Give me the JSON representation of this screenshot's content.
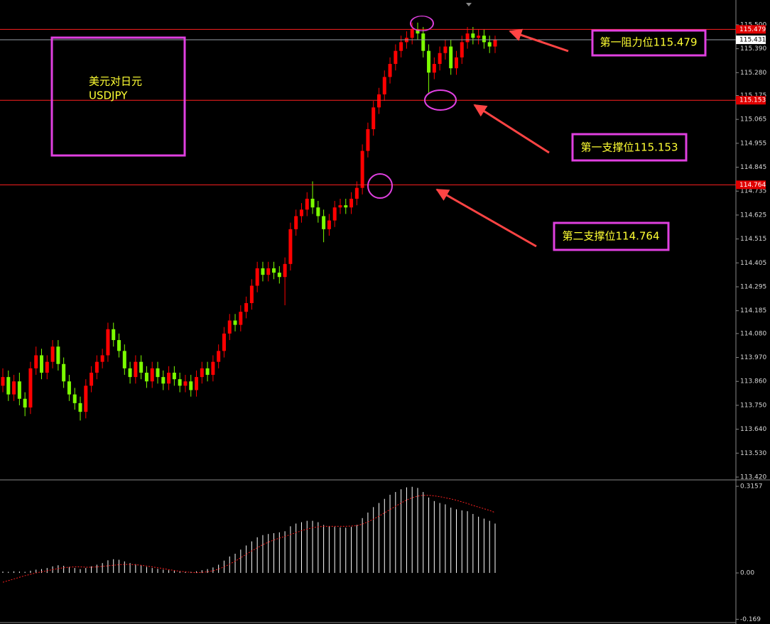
{
  "chart_data": [
    {
      "type": "candlestick",
      "title": "美元对日元",
      "subtitle": "USDJPY",
      "up_color": "#ff0000",
      "down_color": "#7cfc00",
      "open": [
        113.84,
        113.88,
        113.8,
        113.86,
        113.78,
        113.74,
        113.92,
        113.98,
        113.9,
        113.95,
        114.02,
        113.94,
        113.86,
        113.8,
        113.76,
        113.72,
        113.84,
        113.9,
        113.95,
        113.98,
        114.1,
        114.05,
        114.0,
        113.92,
        113.88,
        113.95,
        113.9,
        113.86,
        113.92,
        113.88,
        113.85,
        113.9,
        113.87,
        113.84,
        113.86,
        113.82,
        113.88,
        113.92,
        113.89,
        113.95,
        114.0,
        114.08,
        114.14,
        114.12,
        114.18,
        114.22,
        114.3,
        114.38,
        114.35,
        114.38,
        114.36,
        114.34,
        114.4,
        114.56,
        114.62,
        114.65,
        114.7,
        114.66,
        114.62,
        114.56,
        114.6,
        114.66,
        114.67,
        114.66,
        114.7,
        114.75,
        114.92,
        115.02,
        115.12,
        115.18,
        115.26,
        115.32,
        115.38,
        115.42,
        115.44,
        115.48,
        115.46,
        115.38,
        115.28,
        115.32,
        115.37,
        115.4,
        115.3,
        115.35,
        115.42,
        115.46,
        115.44,
        115.45,
        115.42,
        115.4
      ],
      "high": [
        113.92,
        113.91,
        113.89,
        113.9,
        113.81,
        113.95,
        114.02,
        114.01,
        113.98,
        114.05,
        114.05,
        113.97,
        113.89,
        113.83,
        113.79,
        113.87,
        113.93,
        113.98,
        114.01,
        114.13,
        114.13,
        114.08,
        114.03,
        113.95,
        113.98,
        113.98,
        113.93,
        113.95,
        113.95,
        113.91,
        113.93,
        113.93,
        113.9,
        113.89,
        113.89,
        113.91,
        113.95,
        113.95,
        113.98,
        114.03,
        114.11,
        114.17,
        114.17,
        114.21,
        114.25,
        114.33,
        114.41,
        114.41,
        114.41,
        114.41,
        114.39,
        114.43,
        114.59,
        114.65,
        114.68,
        114.73,
        114.78,
        114.69,
        114.65,
        114.63,
        114.69,
        114.7,
        114.7,
        114.73,
        114.78,
        114.95,
        115.05,
        115.15,
        115.21,
        115.29,
        115.35,
        115.41,
        115.45,
        115.47,
        115.51,
        115.51,
        115.49,
        115.41,
        115.35,
        115.4,
        115.43,
        115.43,
        115.38,
        115.45,
        115.49,
        115.49,
        115.48,
        115.48,
        115.45,
        115.45
      ],
      "low": [
        113.81,
        113.77,
        113.77,
        113.75,
        113.7,
        113.71,
        113.89,
        113.87,
        113.87,
        113.92,
        113.91,
        113.83,
        113.77,
        113.73,
        113.68,
        113.69,
        113.81,
        113.87,
        113.92,
        113.95,
        114.02,
        113.97,
        113.89,
        113.85,
        113.85,
        113.87,
        113.83,
        113.83,
        113.85,
        113.82,
        113.82,
        113.84,
        113.81,
        113.81,
        113.79,
        113.79,
        113.85,
        113.86,
        113.86,
        113.92,
        113.97,
        114.05,
        114.09,
        114.09,
        114.15,
        114.19,
        114.27,
        114.32,
        114.32,
        114.33,
        114.31,
        114.21,
        114.37,
        114.53,
        114.59,
        114.62,
        114.63,
        114.59,
        114.5,
        114.53,
        114.57,
        114.63,
        114.63,
        114.63,
        114.67,
        114.72,
        114.89,
        114.99,
        115.09,
        115.15,
        115.23,
        115.29,
        115.35,
        115.39,
        115.41,
        115.43,
        115.35,
        115.18,
        115.25,
        115.29,
        115.34,
        115.27,
        115.27,
        115.32,
        115.39,
        115.41,
        115.41,
        115.39,
        115.37,
        115.37
      ],
      "close": [
        113.88,
        113.8,
        113.86,
        113.78,
        113.74,
        113.92,
        113.98,
        113.9,
        113.95,
        114.02,
        113.94,
        113.86,
        113.8,
        113.76,
        113.72,
        113.84,
        113.9,
        113.95,
        113.98,
        114.1,
        114.05,
        114.0,
        113.92,
        113.88,
        113.95,
        113.9,
        113.86,
        113.92,
        113.88,
        113.85,
        113.9,
        113.87,
        113.84,
        113.86,
        113.82,
        113.88,
        113.92,
        113.89,
        113.95,
        114.0,
        114.08,
        114.14,
        114.12,
        114.18,
        114.22,
        114.3,
        114.38,
        114.35,
        114.38,
        114.36,
        114.34,
        114.4,
        114.56,
        114.62,
        114.65,
        114.7,
        114.66,
        114.62,
        114.56,
        114.6,
        114.66,
        114.67,
        114.66,
        114.7,
        114.75,
        114.92,
        115.02,
        115.12,
        115.18,
        115.26,
        115.32,
        115.38,
        115.42,
        115.44,
        115.48,
        115.46,
        115.38,
        115.28,
        115.32,
        115.37,
        115.4,
        115.3,
        115.35,
        115.42,
        115.46,
        115.44,
        115.45,
        115.42,
        115.4,
        115.431
      ],
      "ylim": [
        113.407,
        115.614
      ],
      "yticks": [
        {
          "value": 115.5,
          "label": "115.500"
        },
        {
          "value": 115.39,
          "label": "115.390"
        },
        {
          "value": 115.28,
          "label": "115.280"
        },
        115.175,
        115.065,
        114.955,
        114.845,
        114.735,
        114.625,
        114.515,
        114.405,
        114.295,
        114.185,
        {
          "value": 114.08,
          "label": "114.080"
        },
        {
          "value": 113.97,
          "label": "113.970"
        },
        {
          "value": 113.86,
          "label": "113.860"
        },
        {
          "value": 113.75,
          "label": "113.750"
        },
        {
          "value": 113.64,
          "label": "113.640"
        },
        {
          "value": 113.53,
          "label": "113.530"
        },
        {
          "value": 113.42,
          "label": "113.420"
        }
      ],
      "current_price": 115.431,
      "levels": [
        {
          "value": 115.479,
          "label": "第一阻力位115.479"
        },
        {
          "value": 115.153,
          "label": "第一支撑位115.153"
        },
        {
          "value": 114.764,
          "label": "第二支撑位114.764"
        }
      ]
    },
    {
      "type": "macd",
      "histogram": {
        "color": "#ffffff",
        "values": [
          0.005,
          0.004,
          0.006,
          0.005,
          0.004,
          0.008,
          0.012,
          0.014,
          0.018,
          0.024,
          0.028,
          0.026,
          0.022,
          0.018,
          0.014,
          0.018,
          0.024,
          0.03,
          0.036,
          0.046,
          0.05,
          0.048,
          0.042,
          0.036,
          0.032,
          0.028,
          0.022,
          0.018,
          0.015,
          0.012,
          0.01,
          0.008,
          0.006,
          0.005,
          0.004,
          0.006,
          0.01,
          0.014,
          0.02,
          0.03,
          0.045,
          0.06,
          0.07,
          0.085,
          0.1,
          0.115,
          0.13,
          0.138,
          0.142,
          0.145,
          0.148,
          0.152,
          0.17,
          0.18,
          0.185,
          0.19,
          0.19,
          0.185,
          0.175,
          0.17,
          0.168,
          0.166,
          0.165,
          0.168,
          0.175,
          0.2,
          0.22,
          0.24,
          0.255,
          0.27,
          0.285,
          0.295,
          0.305,
          0.312,
          0.314,
          0.31,
          0.295,
          0.275,
          0.262,
          0.255,
          0.25,
          0.238,
          0.232,
          0.228,
          0.225,
          0.215,
          0.205,
          0.198,
          0.19,
          0.18
        ]
      },
      "signal": {
        "color": "#ff2020",
        "values": [
          -0.034,
          -0.028,
          -0.022,
          -0.016,
          -0.01,
          -0.005,
          0,
          0.004,
          0.008,
          0.012,
          0.016,
          0.019,
          0.021,
          0.022,
          0.022,
          0.021,
          0.021,
          0.022,
          0.024,
          0.026,
          0.028,
          0.03,
          0.031,
          0.031,
          0.03,
          0.028,
          0.025,
          0.022,
          0.019,
          0.016,
          0.012,
          0.009,
          0.006,
          0.004,
          0.002,
          0.001,
          0.002,
          0.004,
          0.008,
          0.014,
          0.022,
          0.032,
          0.043,
          0.055,
          0.068,
          0.08,
          0.092,
          0.103,
          0.112,
          0.12,
          0.127,
          0.133,
          0.14,
          0.147,
          0.154,
          0.16,
          0.165,
          0.168,
          0.17,
          0.17,
          0.17,
          0.17,
          0.17,
          0.171,
          0.172,
          0.178,
          0.186,
          0.196,
          0.207,
          0.219,
          0.231,
          0.243,
          0.255,
          0.266,
          0.274,
          0.28,
          0.283,
          0.283,
          0.281,
          0.278,
          0.274,
          0.27,
          0.265,
          0.259,
          0.253,
          0.246,
          0.24,
          0.234,
          0.228,
          0.22
        ]
      },
      "ylim": [
        -0.181,
        0.334
      ],
      "yticks": [
        0.3157,
        {
          "value": 0,
          "label": "0.00"
        },
        -0.169
      ]
    }
  ]
}
